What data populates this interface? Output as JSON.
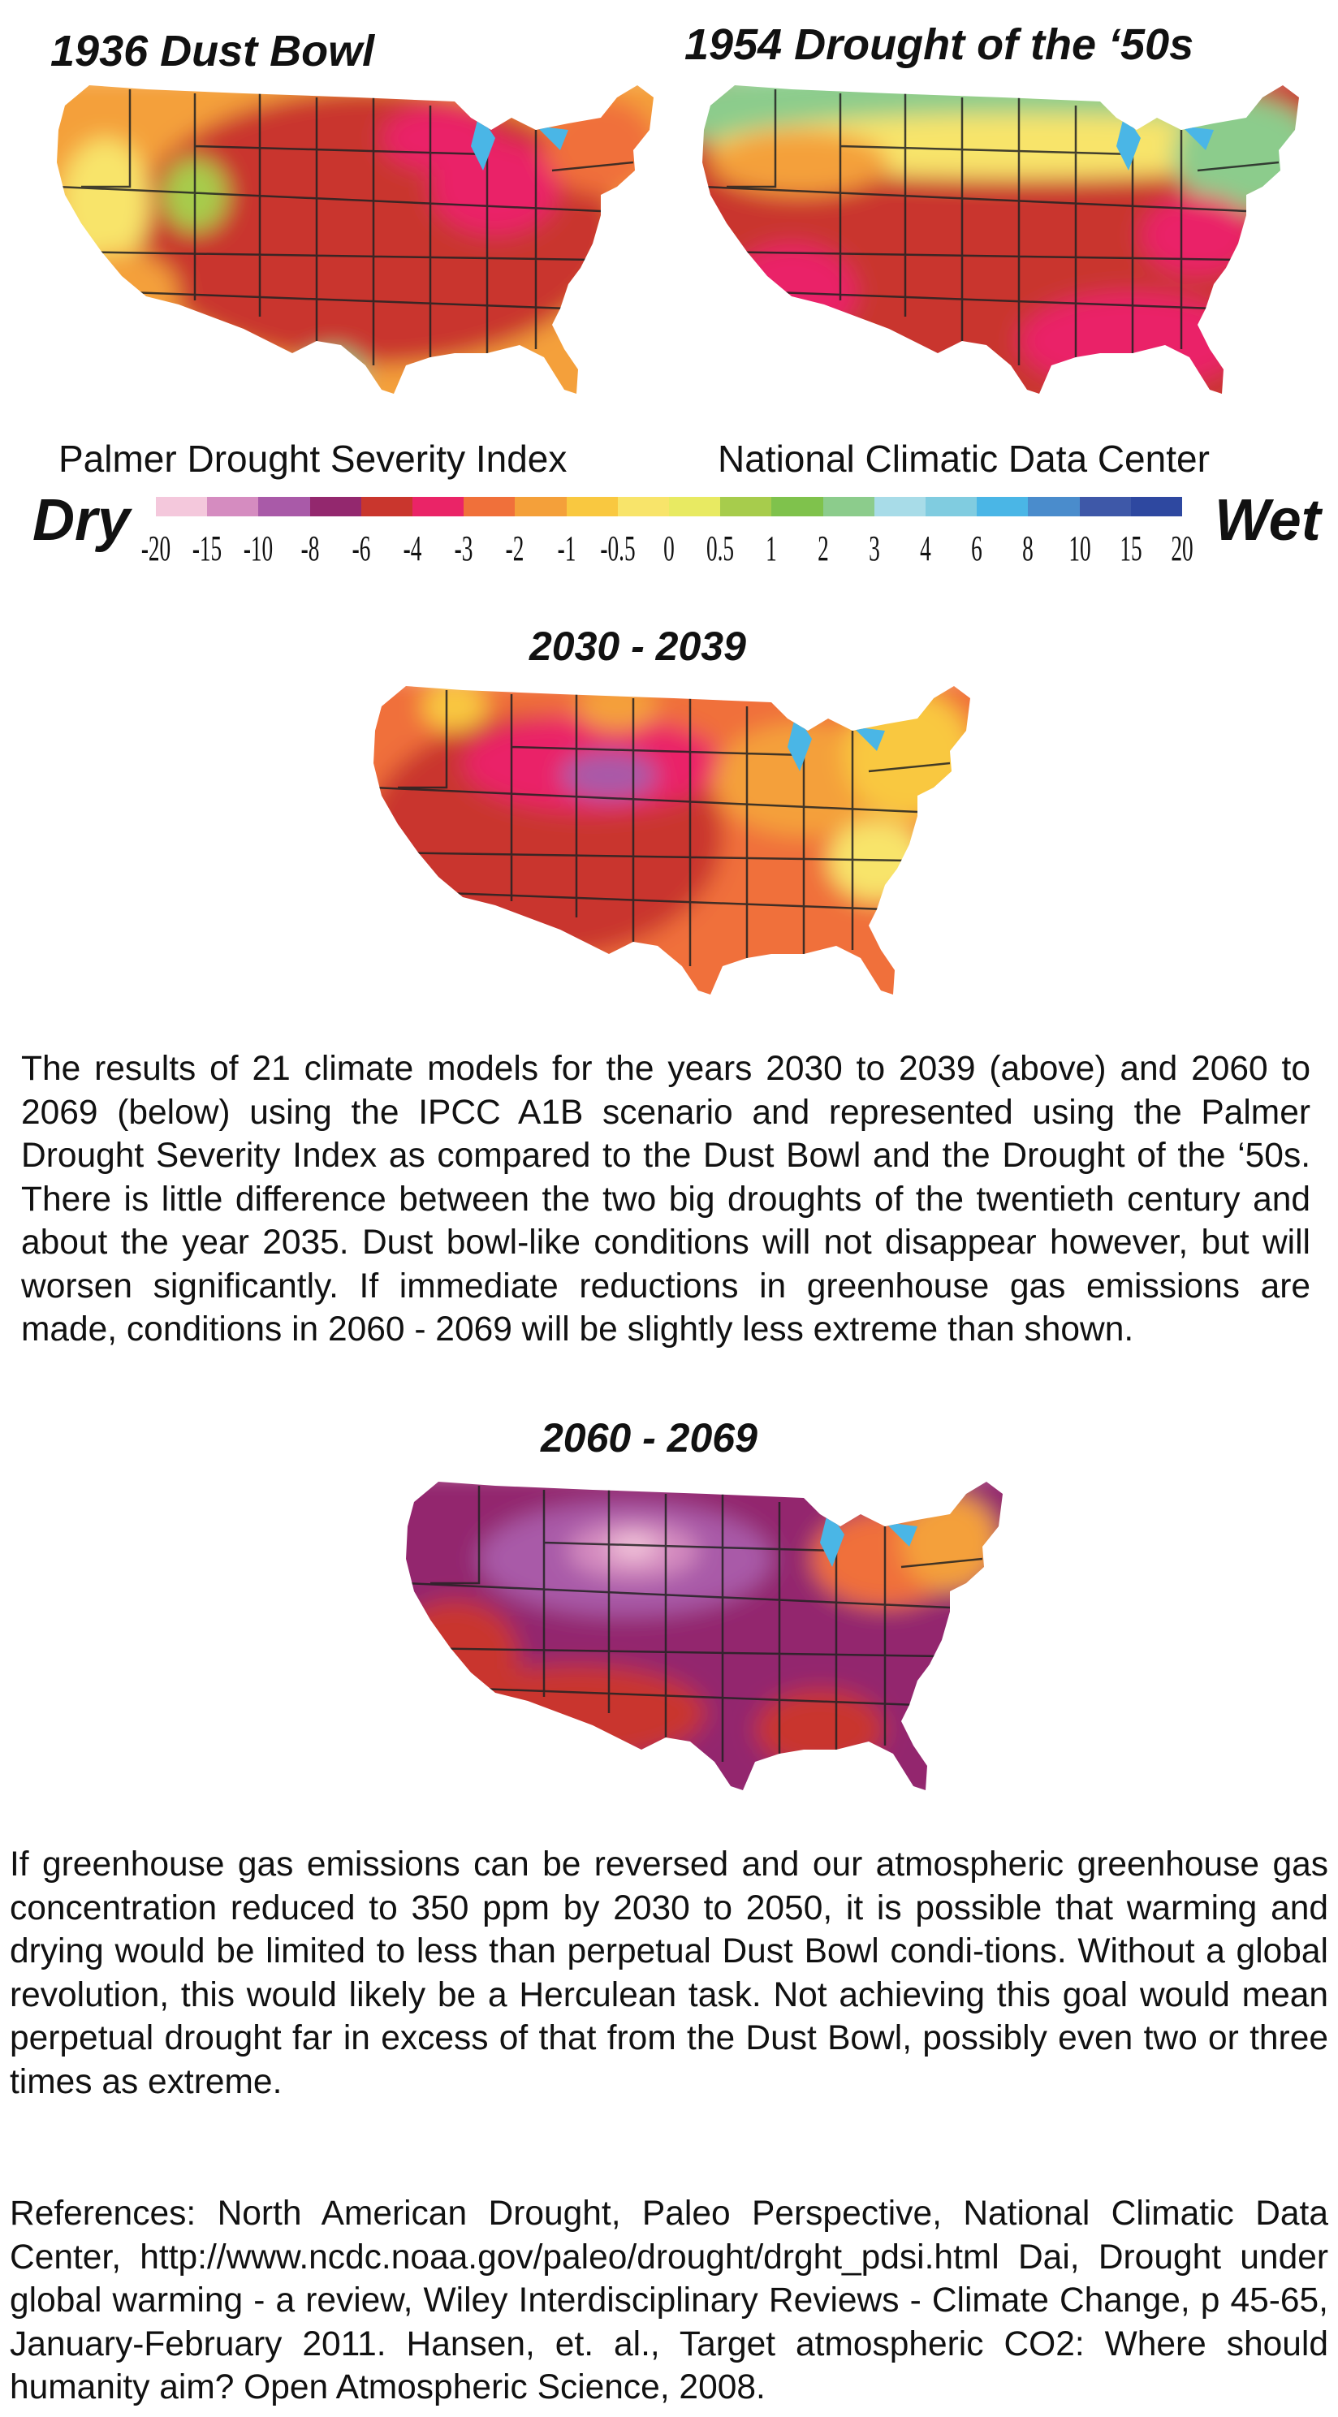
{
  "maps": {
    "dust_bowl": {
      "title": "1936 Dust Bowl"
    },
    "drought_50s": {
      "title": "1954 Drought of the ‘50s"
    },
    "decade_2030": {
      "title": "2030 - 2039"
    },
    "decade_2060": {
      "title": "2060 - 2069"
    }
  },
  "legend": {
    "index_name": "Palmer Drought Severity Index",
    "source": "National Climatic Data Center",
    "dry_label": "Dry",
    "wet_label": "Wet",
    "ticks": [
      "-20",
      "-15",
      "-10",
      "-8",
      "-6",
      "-4",
      "-3",
      "-2",
      "-1",
      "-0.5",
      "0",
      "0.5",
      "1",
      "2",
      "3",
      "4",
      "6",
      "8",
      "10",
      "15",
      "20"
    ],
    "colors": [
      "#f4c8dc",
      "#d58cc0",
      "#a95aa8",
      "#93286e",
      "#c9362d",
      "#ea2467",
      "#f0703a",
      "#f4a03a",
      "#f9c840",
      "#f8e46a",
      "#e8ea62",
      "#a7cc4c",
      "#7fc24c",
      "#8ccc8c",
      "#a8dce8",
      "#80cce0",
      "#4ab6e6",
      "#4a8ccc",
      "#3e58a8",
      "#2e48a0"
    ]
  },
  "paragraphs": {
    "caption": "The results of 21 climate models for the years 2030 to 2039 (above) and 2060 to 2069 (below) using the IPCC A1B scenario and represented using the Palmer Drought Severity Index as compared to the Dust Bowl and the Drought of the ‘50s. There is little difference between the two big droughts of the twentieth century and about the year 2035. Dust bowl-like conditions will not disappear however, but will worsen significantly. If immediate reductions in greenhouse gas emissions are made, conditions in 2060 - 2069 will be slightly less extreme than shown.",
    "outlook": "If greenhouse gas emissions can be reversed and our atmospheric greenhouse gas concentration reduced to 350 ppm by 2030 to 2050, it is possible that warming and drying would be limited to less than perpetual Dust Bowl condi-tions. Without a global revolution, this would likely be a Herculean task. Not achieving this goal would mean perpetual drought far in excess of that from the Dust Bowl, possibly even two or three times as extreme.",
    "references": "References:  North American Drought, Paleo Perspective, National Climatic Data Center, http://www.ncdc.noaa.gov/paleo/drought/drght_pdsi.html Dai, Drought under global warming - a review, Wiley Interdisciplinary Reviews - Climate Change, p 45-65, January-February 2011. Hansen, et. al., Target atmospheric CO2: Where should humanity aim? Open Atmospheric Science, 2008."
  }
}
